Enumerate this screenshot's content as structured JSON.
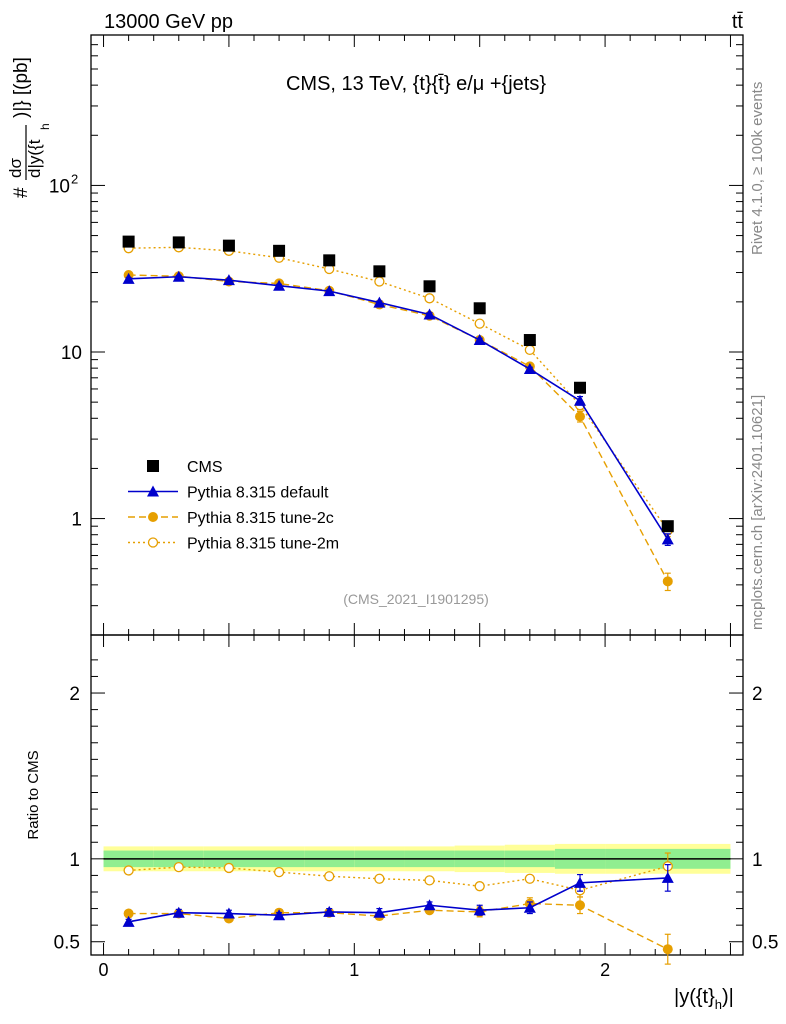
{
  "header": {
    "left": "13000 GeV pp",
    "right": "tt̄",
    "title": "CMS, 13 TeV, {t}{t̄} e/μ +{jets}",
    "analysis": "(CMS_2021_I1901295)",
    "side_top": "Rivet 4.1.0, ≥ 100k events",
    "side_bottom": "mcplots.cern.ch [arXiv:2401.10621]"
  },
  "chart_data": [
    {
      "type": "scatter",
      "panel": "main",
      "yscale": "log",
      "ylim": [
        0.2,
        800
      ],
      "xlim": [
        -0.05,
        2.55
      ],
      "ylabel": "# dσ/d|y({t_h})|} [(pb]",
      "ylabel_lines": [
        "#",
        "dσ",
        "d|y({t",
        "h",
        ")|} [(pb]"
      ],
      "ytick_labels": [
        {
          "v": 1,
          "label": "1"
        },
        {
          "v": 10,
          "label": "10"
        },
        {
          "v": 100,
          "label": "10",
          "sup": "2"
        }
      ],
      "x": [
        0.1,
        0.3,
        0.5,
        0.7,
        0.9,
        1.1,
        1.3,
        1.5,
        1.7,
        1.9,
        2.25
      ],
      "series": [
        {
          "name": "CMS",
          "style": "data",
          "color": "#000000",
          "values": [
            46,
            45.5,
            43.5,
            40.5,
            35.5,
            30.5,
            24.8,
            18.3,
            11.8,
            6.1,
            0.9
          ]
        },
        {
          "name": "Pythia 8.315 default",
          "style": "solid-triangle",
          "color": "#0000cc",
          "values": [
            27.5,
            28.3,
            27,
            25,
            23.2,
            19.8,
            16.8,
            11.8,
            7.9,
            5.1,
            0.75
          ],
          "errors": [
            0.5,
            0.5,
            0.5,
            0.5,
            0.4,
            0.4,
            0.4,
            0.3,
            0.2,
            0.3,
            0.06
          ]
        },
        {
          "name": "Pythia 8.315 tune-2c",
          "style": "dashed-circle",
          "color": "#e69f00",
          "values": [
            29,
            28.5,
            26.5,
            25.8,
            23.3,
            19.3,
            16.5,
            11.8,
            8.2,
            4.1,
            0.42
          ],
          "errors": [
            0.5,
            0.5,
            0.5,
            0.5,
            0.4,
            0.4,
            0.4,
            0.3,
            0.3,
            0.3,
            0.05
          ]
        },
        {
          "name": "Pythia 8.315 tune-2m",
          "style": "dotted-open-circle",
          "color": "#e69f00",
          "values": [
            42,
            42.5,
            40.5,
            36.8,
            31.5,
            26.5,
            21,
            14.8,
            10.3,
            4.8,
            0.85
          ],
          "errors": [
            0.5,
            0.5,
            0.5,
            0.5,
            0.4,
            0.4,
            0.4,
            0.3,
            0.3,
            0.3,
            0.07
          ]
        }
      ]
    },
    {
      "type": "scatter",
      "panel": "ratio",
      "ylim": [
        0.42,
        2.35
      ],
      "ylabel": "Ratio to CMS",
      "ytick_labels": [
        {
          "v": 0.5,
          "label": "0.5"
        },
        {
          "v": 1,
          "label": "1"
        },
        {
          "v": 2,
          "label": "2"
        }
      ],
      "xlabel": "|y({t}",
      "xlabel_sub": "h",
      "xlabel_end": ")|",
      "xtick_labels": [
        {
          "v": 0,
          "label": "0"
        },
        {
          "v": 1,
          "label": "1"
        },
        {
          "v": 2,
          "label": "2"
        }
      ],
      "band_edges": [
        0,
        0.2,
        0.4,
        0.6,
        0.8,
        1.0,
        1.2,
        1.4,
        1.6,
        1.8,
        2.0,
        2.5
      ],
      "band_inner": [
        0.05,
        0.05,
        0.05,
        0.05,
        0.05,
        0.05,
        0.05,
        0.05,
        0.05,
        0.06,
        0.06
      ],
      "band_outer": [
        0.075,
        0.075,
        0.075,
        0.075,
        0.075,
        0.075,
        0.075,
        0.08,
        0.085,
        0.09,
        0.09
      ],
      "x": [
        0.1,
        0.3,
        0.5,
        0.7,
        0.9,
        1.1,
        1.3,
        1.5,
        1.7,
        1.9,
        2.25
      ],
      "series": [
        {
          "name": "Pythia 8.315 default",
          "style": "solid-triangle",
          "color": "#0000cc",
          "values": [
            0.62,
            0.675,
            0.67,
            0.66,
            0.68,
            0.675,
            0.72,
            0.69,
            0.705,
            0.855,
            0.885
          ],
          "errors": [
            0.015,
            0.02,
            0.02,
            0.015,
            0.02,
            0.025,
            0.02,
            0.03,
            0.035,
            0.05,
            0.08
          ]
        },
        {
          "name": "Pythia 8.315 tune-2c",
          "style": "dashed-circle",
          "color": "#e69f00",
          "values": [
            0.67,
            0.67,
            0.64,
            0.675,
            0.675,
            0.655,
            0.69,
            0.68,
            0.73,
            0.72,
            0.455
          ],
          "errors": [
            0.015,
            0.02,
            0.02,
            0.02,
            0.02,
            0.02,
            0.02,
            0.03,
            0.035,
            0.05,
            0.09
          ]
        },
        {
          "name": "Pythia 8.315 tune-2m",
          "style": "dotted-open-circle",
          "color": "#e69f00",
          "values": [
            0.93,
            0.95,
            0.945,
            0.92,
            0.895,
            0.88,
            0.87,
            0.835,
            0.88,
            0.81,
            0.955
          ],
          "errors": [
            0.01,
            0.01,
            0.01,
            0.01,
            0.01,
            0.01,
            0.015,
            0.02,
            0.02,
            0.04,
            0.08
          ]
        }
      ]
    }
  ],
  "colors": {
    "band_inner": "#90ee90",
    "band_outer": "#ffff99",
    "axis": "#000000",
    "side_text": "#888888",
    "analysis_text": "#999999"
  }
}
